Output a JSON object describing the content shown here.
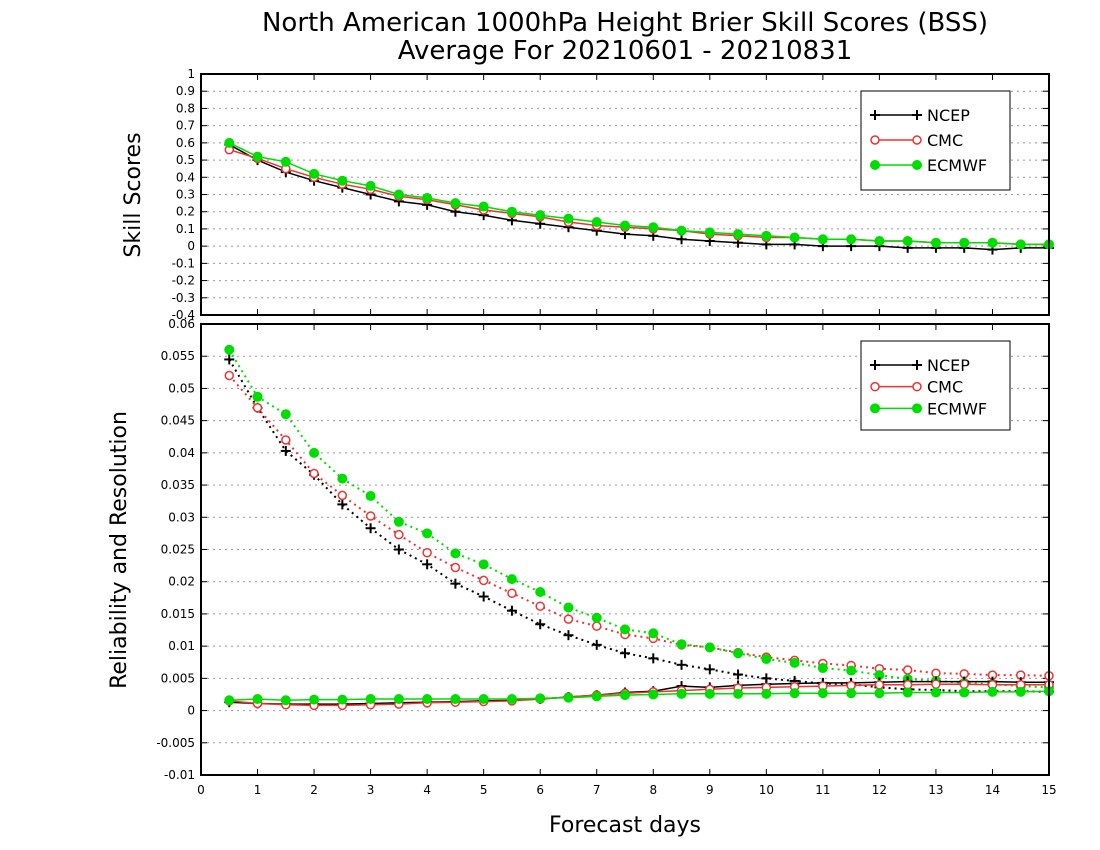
{
  "title_line1": "North American 1000hPa Height Brier Skill Scores (BSS)",
  "title_line2": "Average For 20210601 - 20210831",
  "xlabel": "Forecast days",
  "colors": {
    "NCEP": "#000000",
    "CMC": "#ee3333",
    "ECMWF": "#00dd00"
  },
  "chart_data": [
    {
      "type": "line",
      "ylabel": "Skill Scores",
      "xlim": [
        0,
        15
      ],
      "ylim": [
        -0.4,
        1
      ],
      "xticks": [
        "0",
        "1",
        "2",
        "3",
        "4",
        "5",
        "6",
        "7",
        "8",
        "9",
        "10",
        "11",
        "12",
        "13",
        "14",
        "15"
      ],
      "yticks": [
        "-0.4",
        "-0.3",
        "-0.2",
        "-0.1",
        "0",
        "0.1",
        "0.2",
        "0.3",
        "0.4",
        "0.5",
        "0.6",
        "0.7",
        "0.8",
        "0.9",
        "1"
      ],
      "grid": true,
      "legend_position": "top-right",
      "legend": [
        "NCEP",
        "CMC",
        "ECMWF"
      ],
      "x": [
        0.5,
        1,
        1.5,
        2,
        2.5,
        3,
        3.5,
        4,
        4.5,
        5,
        5.5,
        6,
        6.5,
        7,
        7.5,
        8,
        8.5,
        9,
        9.5,
        10,
        10.5,
        11,
        11.5,
        12,
        12.5,
        13,
        13.5,
        14,
        14.5,
        15
      ],
      "series": [
        {
          "name": "NCEP",
          "marker": "plus",
          "line": "solid",
          "values": [
            0.59,
            0.5,
            0.43,
            0.38,
            0.34,
            0.3,
            0.26,
            0.24,
            0.2,
            0.18,
            0.15,
            0.13,
            0.11,
            0.09,
            0.07,
            0.06,
            0.04,
            0.03,
            0.02,
            0.01,
            0.01,
            0.0,
            0.0,
            0.0,
            -0.01,
            -0.01,
            -0.01,
            -0.02,
            -0.01,
            -0.01
          ]
        },
        {
          "name": "CMC",
          "marker": "circle-open",
          "line": "solid",
          "values": [
            0.56,
            0.51,
            0.45,
            0.4,
            0.36,
            0.33,
            0.29,
            0.27,
            0.24,
            0.21,
            0.19,
            0.17,
            0.14,
            0.12,
            0.11,
            0.1,
            0.09,
            0.07,
            0.06,
            0.05,
            0.05,
            0.04,
            0.04,
            0.03,
            0.03,
            0.02,
            0.02,
            0.02,
            0.01,
            0.01
          ]
        },
        {
          "name": "ECMWF",
          "marker": "circle-filled",
          "line": "solid",
          "values": [
            0.6,
            0.52,
            0.49,
            0.42,
            0.38,
            0.35,
            0.3,
            0.28,
            0.25,
            0.23,
            0.2,
            0.18,
            0.16,
            0.14,
            0.12,
            0.11,
            0.09,
            0.08,
            0.07,
            0.06,
            0.05,
            0.04,
            0.04,
            0.03,
            0.03,
            0.02,
            0.02,
            0.02,
            0.01,
            0.01
          ]
        }
      ]
    },
    {
      "type": "line",
      "ylabel": "Reliability and Resolution",
      "xlim": [
        0,
        15
      ],
      "ylim": [
        -0.01,
        0.06
      ],
      "xticks": [
        "0",
        "1",
        "2",
        "3",
        "4",
        "5",
        "6",
        "7",
        "8",
        "9",
        "10",
        "11",
        "12",
        "13",
        "14",
        "15"
      ],
      "yticks": [
        "-0.01",
        "-0.005",
        "0",
        "0.005",
        "0.01",
        "0.015",
        "0.02",
        "0.025",
        "0.03",
        "0.035",
        "0.04",
        "0.045",
        "0.05",
        "0.055",
        "0.06"
      ],
      "grid": true,
      "legend_position": "top-right",
      "legend": [
        "NCEP",
        "CMC",
        "ECMWF"
      ],
      "x": [
        0.5,
        1,
        1.5,
        2,
        2.5,
        3,
        3.5,
        4,
        4.5,
        5,
        5.5,
        6,
        6.5,
        7,
        7.5,
        8,
        8.5,
        9,
        9.5,
        10,
        10.5,
        11,
        11.5,
        12,
        12.5,
        13,
        13.5,
        14,
        14.5,
        15
      ],
      "series": [
        {
          "name": "NCEP",
          "role": "resolution",
          "marker": "plus",
          "line": "dotted",
          "values": [
            0.0545,
            0.047,
            0.0403,
            0.0366,
            0.032,
            0.0283,
            0.025,
            0.0227,
            0.0197,
            0.0177,
            0.0155,
            0.0134,
            0.0117,
            0.0102,
            0.0089,
            0.0081,
            0.0071,
            0.0064,
            0.0056,
            0.005,
            0.0046,
            0.0042,
            0.0041,
            0.0036,
            0.0033,
            0.0032,
            0.003,
            0.003,
            0.003,
            0.0029
          ]
        },
        {
          "name": "CMC",
          "role": "resolution",
          "marker": "circle-open",
          "line": "dotted",
          "values": [
            0.052,
            0.047,
            0.042,
            0.0368,
            0.0334,
            0.0302,
            0.0273,
            0.0245,
            0.0222,
            0.0202,
            0.0182,
            0.0162,
            0.0142,
            0.0131,
            0.0118,
            0.0112,
            0.0102,
            0.0098,
            0.009,
            0.0083,
            0.0078,
            0.0073,
            0.007,
            0.0065,
            0.0063,
            0.0058,
            0.0057,
            0.0055,
            0.0055,
            0.0054
          ]
        },
        {
          "name": "ECMWF",
          "role": "resolution",
          "marker": "circle-filled",
          "line": "dotted",
          "values": [
            0.056,
            0.0487,
            0.046,
            0.04,
            0.036,
            0.0333,
            0.0293,
            0.0275,
            0.0244,
            0.0227,
            0.0204,
            0.0184,
            0.016,
            0.0144,
            0.0126,
            0.012,
            0.0103,
            0.0098,
            0.0089,
            0.008,
            0.0074,
            0.0066,
            0.0062,
            0.0055,
            0.0049,
            0.0046,
            0.0043,
            0.0041,
            0.0038,
            0.0036
          ]
        },
        {
          "name": "NCEP",
          "role": "reliability",
          "marker": "plus",
          "line": "solid",
          "values": [
            0.0013,
            0.0011,
            0.001,
            0.001,
            0.001,
            0.0011,
            0.0012,
            0.0013,
            0.0014,
            0.0015,
            0.0016,
            0.0018,
            0.0021,
            0.0024,
            0.0028,
            0.003,
            0.0038,
            0.0036,
            0.0039,
            0.0041,
            0.0042,
            0.0043,
            0.0043,
            0.0044,
            0.0045,
            0.0045,
            0.0045,
            0.0045,
            0.0044,
            0.0044
          ]
        },
        {
          "name": "CMC",
          "role": "reliability",
          "marker": "circle-open",
          "line": "solid",
          "values": [
            0.0015,
            0.0011,
            0.0009,
            0.0008,
            0.0008,
            0.0009,
            0.001,
            0.0012,
            0.0013,
            0.0014,
            0.0015,
            0.0018,
            0.0021,
            0.0024,
            0.0027,
            0.0029,
            0.0031,
            0.0033,
            0.0035,
            0.0036,
            0.0037,
            0.0038,
            0.0039,
            0.004,
            0.004,
            0.0041,
            0.0041,
            0.004,
            0.004,
            0.004
          ]
        },
        {
          "name": "ECMWF",
          "role": "reliability",
          "marker": "circle-filled",
          "line": "solid",
          "values": [
            0.0016,
            0.0018,
            0.0016,
            0.0017,
            0.0017,
            0.0018,
            0.0018,
            0.0018,
            0.0018,
            0.0018,
            0.0018,
            0.0019,
            0.002,
            0.0022,
            0.0024,
            0.0025,
            0.0026,
            0.0026,
            0.0026,
            0.0026,
            0.0027,
            0.0027,
            0.0027,
            0.0027,
            0.0028,
            0.0028,
            0.0028,
            0.0029,
            0.0029,
            0.003
          ]
        }
      ]
    }
  ]
}
